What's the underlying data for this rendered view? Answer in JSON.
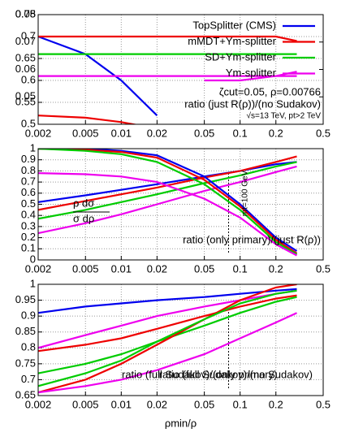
{
  "chart_data": [
    {
      "type": "line",
      "log_x": true,
      "grid": true,
      "x": [
        0.002,
        0.005,
        0.01,
        0.02,
        0.05,
        0.1,
        0.2,
        0.3
      ],
      "xlim": [
        0.002,
        0.5
      ],
      "xticks": [
        0.002,
        0.005,
        0.01,
        0.02,
        0.05,
        0.1,
        0.2,
        0.5
      ],
      "ylim": [
        0.5,
        0.75
      ],
      "yticks": [
        0.5,
        0.55,
        0.6,
        0.65,
        0.7,
        0.75
      ],
      "y2lim": [
        0.04,
        0.08
      ],
      "y2ticks": [
        0.05,
        0.06,
        0.07,
        0.08
      ],
      "legend": "top-right",
      "annotations": [
        "ζcut=0.05, ρ=0.00766",
        "ratio (just R(ρ))/(no Sudakov)",
        "√s=13 TeV, pt>2 TeV"
      ],
      "series": [
        {
          "name": "TopSplitter (CMS)",
          "color": "#0000ee",
          "values": [
            0.7,
            0.66,
            0.6,
            0.52,
            null,
            null,
            null,
            null
          ]
        },
        {
          "name": "mMDT+Ym-splitter",
          "color": "#ee0000",
          "values": [
            0.7,
            0.7,
            0.7,
            0.7,
            0.7,
            0.7,
            0.7,
            0.69
          ]
        },
        {
          "name": "SD+Ym-splitter",
          "color": "#00cc00",
          "values": [
            0.66,
            0.66,
            0.66,
            0.66,
            0.66,
            0.66,
            0.66,
            0.66
          ]
        },
        {
          "name": "Ym-splitter",
          "color": "#ee00ee",
          "values": [
            0.61,
            0.61,
            0.61,
            0.61,
            0.61,
            0.61,
            0.61,
            0.61
          ]
        },
        {
          "color": "#ee0000",
          "values": [
            0.52,
            0.515,
            0.505,
            0.49,
            null,
            null,
            null,
            null
          ]
        },
        {
          "color": "#ee00ee",
          "values": [
            null,
            null,
            null,
            null,
            0.6,
            0.6,
            0.61,
            0.62
          ]
        }
      ]
    },
    {
      "type": "line",
      "log_x": true,
      "grid": true,
      "x": [
        0.002,
        0.005,
        0.01,
        0.02,
        0.05,
        0.1,
        0.2,
        0.3
      ],
      "xlim": [
        0.002,
        0.5
      ],
      "xticks": [
        0.002,
        0.005,
        0.01,
        0.02,
        0.05,
        0.1,
        0.2,
        0.5
      ],
      "ylim": [
        0,
        1
      ],
      "yticks": [
        0,
        0.1,
        0.2,
        0.3,
        0.4,
        0.5,
        0.6,
        0.7,
        0.8,
        0.9,
        1
      ],
      "vline": 0.08,
      "annotations": [
        "ρ  dσ",
        "σ  dρ",
        "ratio (only primary)/(just R(ρ))",
        "mt=100 GeV"
      ],
      "series": [
        {
          "color": "#0000ee",
          "values": [
            0.52,
            0.58,
            0.63,
            0.68,
            0.75,
            0.8,
            0.86,
            0.88
          ]
        },
        {
          "color": "#ee0000",
          "values": [
            0.45,
            0.53,
            0.59,
            0.65,
            0.74,
            0.8,
            0.88,
            0.93
          ]
        },
        {
          "color": "#00cc00",
          "values": [
            0.37,
            0.45,
            0.52,
            0.59,
            0.69,
            0.76,
            0.84,
            0.88
          ]
        },
        {
          "color": "#ee00ee",
          "values": [
            0.24,
            0.33,
            0.41,
            0.5,
            0.62,
            0.7,
            0.79,
            0.84
          ]
        },
        {
          "color": "#0000ee",
          "values": [
            1.0,
            1.0,
            0.98,
            0.94,
            0.75,
            0.5,
            0.2,
            0.08
          ]
        },
        {
          "color": "#ee0000",
          "values": [
            1.0,
            0.99,
            0.97,
            0.92,
            0.72,
            0.48,
            0.18,
            0.06
          ]
        },
        {
          "color": "#00cc00",
          "values": [
            1.0,
            0.98,
            0.95,
            0.88,
            0.68,
            0.45,
            0.16,
            0.05
          ]
        },
        {
          "color": "#ee00ee",
          "values": [
            0.78,
            0.77,
            0.75,
            0.7,
            0.55,
            0.38,
            0.14,
            0.04
          ]
        }
      ]
    },
    {
      "type": "line",
      "log_x": true,
      "grid": true,
      "x": [
        0.002,
        0.005,
        0.01,
        0.02,
        0.05,
        0.1,
        0.2,
        0.3
      ],
      "xlim": [
        0.002,
        0.5
      ],
      "xticks": [
        0.002,
        0.005,
        0.01,
        0.02,
        0.05,
        0.1,
        0.2,
        0.5
      ],
      "ylim": [
        0.65,
        1
      ],
      "yticks": [
        0.65,
        0.7,
        0.75,
        0.8,
        0.85,
        0.9,
        0.95,
        1
      ],
      "vline": 0.08,
      "xlabel": "ρmin/ρ",
      "annotations": [
        "ratio (full Sudakov)/(only primary)",
        "ratio (full Sudakov)/(no Sudakov)"
      ],
      "series": [
        {
          "color": "#0000ee",
          "values": [
            0.91,
            0.93,
            0.94,
            0.95,
            0.96,
            0.97,
            0.98,
            0.985
          ]
        },
        {
          "color": "#ee00ee",
          "values": [
            0.8,
            0.84,
            0.87,
            0.9,
            0.93,
            0.95,
            0.97,
            0.98
          ]
        },
        {
          "color": "#ee0000",
          "values": [
            0.79,
            0.81,
            0.83,
            0.86,
            0.9,
            0.93,
            0.955,
            0.965
          ]
        },
        {
          "color": "#00cc00",
          "values": [
            0.72,
            0.75,
            0.78,
            0.82,
            0.87,
            0.91,
            0.945,
            0.96
          ]
        },
        {
          "color": "#ee0000",
          "values": [
            0.66,
            0.7,
            0.75,
            0.81,
            0.89,
            0.95,
            0.99,
            1.0
          ]
        },
        {
          "color": "#00cc00",
          "values": [
            0.68,
            0.72,
            0.76,
            0.82,
            0.89,
            0.94,
            0.97,
            0.98
          ]
        },
        {
          "color": "#ee00ee",
          "values": [
            0.66,
            0.68,
            0.7,
            0.73,
            0.78,
            0.83,
            0.88,
            0.91
          ]
        }
      ]
    }
  ]
}
